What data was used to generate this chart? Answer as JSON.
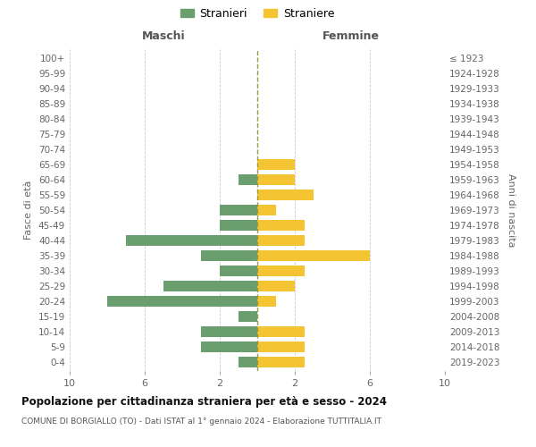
{
  "age_groups": [
    "0-4",
    "5-9",
    "10-14",
    "15-19",
    "20-24",
    "25-29",
    "30-34",
    "35-39",
    "40-44",
    "45-49",
    "50-54",
    "55-59",
    "60-64",
    "65-69",
    "70-74",
    "75-79",
    "80-84",
    "85-89",
    "90-94",
    "95-99",
    "100+"
  ],
  "birth_years": [
    "2019-2023",
    "2014-2018",
    "2009-2013",
    "2004-2008",
    "1999-2003",
    "1994-1998",
    "1989-1993",
    "1984-1988",
    "1979-1983",
    "1974-1978",
    "1969-1973",
    "1964-1968",
    "1959-1963",
    "1954-1958",
    "1949-1953",
    "1944-1948",
    "1939-1943",
    "1934-1938",
    "1929-1933",
    "1924-1928",
    "≤ 1923"
  ],
  "males": [
    1,
    3,
    3,
    1,
    8,
    5,
    2,
    3,
    7,
    2,
    2,
    0,
    1,
    0,
    0,
    0,
    0,
    0,
    0,
    0,
    0
  ],
  "females": [
    2.5,
    2.5,
    2.5,
    0,
    1,
    2,
    2.5,
    6,
    2.5,
    2.5,
    1,
    3,
    2,
    2,
    0,
    0,
    0,
    0,
    0,
    0,
    0
  ],
  "male_color": "#6b9e6e",
  "female_color": "#f5c433",
  "center_line_color": "#9a9a3a",
  "grid_color": "#cccccc",
  "title": "Popolazione per cittadinanza straniera per età e sesso - 2024",
  "subtitle": "COMUNE DI BORGIALLO (TO) - Dati ISTAT al 1° gennaio 2024 - Elaborazione TUTTITALIA.IT",
  "xlabel_left": "Maschi",
  "xlabel_right": "Femmine",
  "ylabel_left": "Fasce di età",
  "ylabel_right": "Anni di nascita",
  "legend_male": "Stranieri",
  "legend_female": "Straniere",
  "xlim": 10,
  "background_color": "#ffffff"
}
